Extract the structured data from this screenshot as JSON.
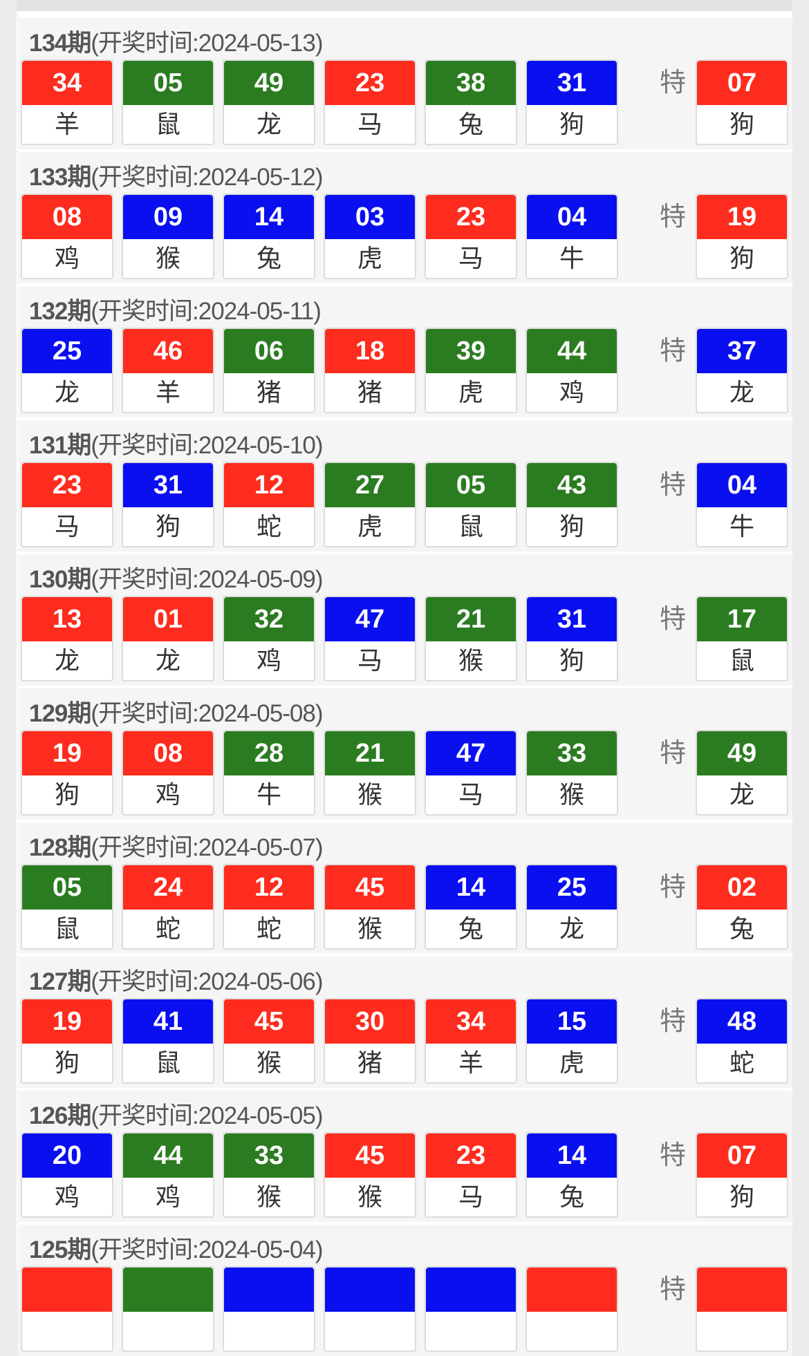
{
  "special_label": "特",
  "draws": [
    {
      "issue": "134期",
      "date_text": "(开奖时间:2024-05-13)",
      "balls": [
        [
          "34",
          "羊",
          "red"
        ],
        [
          "05",
          "鼠",
          "green"
        ],
        [
          "49",
          "龙",
          "green"
        ],
        [
          "23",
          "马",
          "red"
        ],
        [
          "38",
          "兔",
          "green"
        ],
        [
          "31",
          "狗",
          "blue"
        ]
      ],
      "special": [
        "07",
        "狗",
        "red"
      ]
    },
    {
      "issue": "133期",
      "date_text": "(开奖时间:2024-05-12)",
      "balls": [
        [
          "08",
          "鸡",
          "red"
        ],
        [
          "09",
          "猴",
          "blue"
        ],
        [
          "14",
          "兔",
          "blue"
        ],
        [
          "03",
          "虎",
          "blue"
        ],
        [
          "23",
          "马",
          "red"
        ],
        [
          "04",
          "牛",
          "blue"
        ]
      ],
      "special": [
        "19",
        "狗",
        "red"
      ]
    },
    {
      "issue": "132期",
      "date_text": "(开奖时间:2024-05-11)",
      "balls": [
        [
          "25",
          "龙",
          "blue"
        ],
        [
          "46",
          "羊",
          "red"
        ],
        [
          "06",
          "猪",
          "green"
        ],
        [
          "18",
          "猪",
          "red"
        ],
        [
          "39",
          "虎",
          "green"
        ],
        [
          "44",
          "鸡",
          "green"
        ]
      ],
      "special": [
        "37",
        "龙",
        "blue"
      ]
    },
    {
      "issue": "131期",
      "date_text": "(开奖时间:2024-05-10)",
      "balls": [
        [
          "23",
          "马",
          "red"
        ],
        [
          "31",
          "狗",
          "blue"
        ],
        [
          "12",
          "蛇",
          "red"
        ],
        [
          "27",
          "虎",
          "green"
        ],
        [
          "05",
          "鼠",
          "green"
        ],
        [
          "43",
          "狗",
          "green"
        ]
      ],
      "special": [
        "04",
        "牛",
        "blue"
      ]
    },
    {
      "issue": "130期",
      "date_text": "(开奖时间:2024-05-09)",
      "balls": [
        [
          "13",
          "龙",
          "red"
        ],
        [
          "01",
          "龙",
          "red"
        ],
        [
          "32",
          "鸡",
          "green"
        ],
        [
          "47",
          "马",
          "blue"
        ],
        [
          "21",
          "猴",
          "green"
        ],
        [
          "31",
          "狗",
          "blue"
        ]
      ],
      "special": [
        "17",
        "鼠",
        "green"
      ]
    },
    {
      "issue": "129期",
      "date_text": "(开奖时间:2024-05-08)",
      "balls": [
        [
          "19",
          "狗",
          "red"
        ],
        [
          "08",
          "鸡",
          "red"
        ],
        [
          "28",
          "牛",
          "green"
        ],
        [
          "21",
          "猴",
          "green"
        ],
        [
          "47",
          "马",
          "blue"
        ],
        [
          "33",
          "猴",
          "green"
        ]
      ],
      "special": [
        "49",
        "龙",
        "green"
      ]
    },
    {
      "issue": "128期",
      "date_text": "(开奖时间:2024-05-07)",
      "balls": [
        [
          "05",
          "鼠",
          "green"
        ],
        [
          "24",
          "蛇",
          "red"
        ],
        [
          "12",
          "蛇",
          "red"
        ],
        [
          "45",
          "猴",
          "red"
        ],
        [
          "14",
          "兔",
          "blue"
        ],
        [
          "25",
          "龙",
          "blue"
        ]
      ],
      "special": [
        "02",
        "兔",
        "red"
      ]
    },
    {
      "issue": "127期",
      "date_text": "(开奖时间:2024-05-06)",
      "balls": [
        [
          "19",
          "狗",
          "red"
        ],
        [
          "41",
          "鼠",
          "blue"
        ],
        [
          "45",
          "猴",
          "red"
        ],
        [
          "30",
          "猪",
          "red"
        ],
        [
          "34",
          "羊",
          "red"
        ],
        [
          "15",
          "虎",
          "blue"
        ]
      ],
      "special": [
        "48",
        "蛇",
        "blue"
      ]
    },
    {
      "issue": "126期",
      "date_text": "(开奖时间:2024-05-05)",
      "balls": [
        [
          "20",
          "鸡",
          "blue"
        ],
        [
          "44",
          "鸡",
          "green"
        ],
        [
          "33",
          "猴",
          "green"
        ],
        [
          "45",
          "猴",
          "red"
        ],
        [
          "23",
          "马",
          "red"
        ],
        [
          "14",
          "兔",
          "blue"
        ]
      ],
      "special": [
        "07",
        "狗",
        "red"
      ]
    },
    {
      "issue": "125期",
      "date_text": "(开奖时间:2024-05-04)",
      "balls": [
        [
          "",
          "",
          "red"
        ],
        [
          "",
          "",
          "green"
        ],
        [
          "",
          "",
          "blue"
        ],
        [
          "",
          "",
          "blue"
        ],
        [
          "",
          "",
          "blue"
        ],
        [
          "",
          "",
          "red"
        ]
      ],
      "special": [
        "",
        "",
        "red"
      ]
    }
  ]
}
